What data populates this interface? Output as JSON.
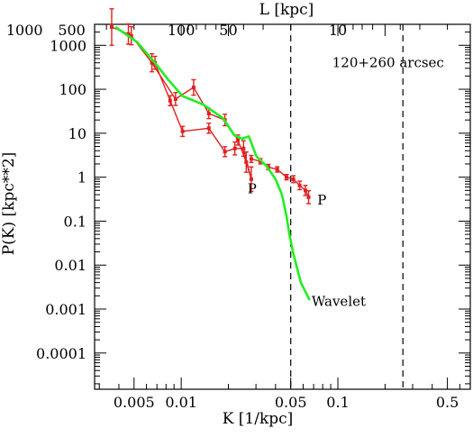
{
  "chart_data": {
    "type": "line",
    "title": "",
    "xlabel": "K [1/kpc]",
    "ylabel": "P(K) [kpc**2]",
    "top_xlabel": "L [kpc]",
    "xscale": "log",
    "yscale": "log",
    "xlim": [
      0.0028,
      0.7
    ],
    "ylim": [
      1.5e-05,
      3000
    ],
    "x_tick_labels": [
      "0.005",
      "0.01",
      "0.05",
      "0.1",
      "0.5"
    ],
    "x_tick_values": [
      0.005,
      0.01,
      0.05,
      0.1,
      0.5
    ],
    "top_tick_labels": [
      "1000",
      "500",
      "100",
      "50",
      "10"
    ],
    "top_tick_values": [
      1000,
      500,
      100,
      50,
      10
    ],
    "y_tick_labels": [
      "1000",
      "100",
      "10",
      "1",
      "0.1",
      "0.01",
      "0.001",
      "0.0001"
    ],
    "y_tick_values": [
      1000,
      100,
      10,
      1,
      0.1,
      0.01,
      0.001,
      0.0001
    ],
    "vlines": [
      0.05,
      0.26
    ],
    "annotations": [
      {
        "text": "120+260 arcsec",
        "x": 0.092,
        "y": 400
      },
      {
        "text": "P",
        "x": 0.0265,
        "y": 0.55
      },
      {
        "text": "P",
        "x": 0.074,
        "y": 0.3
      },
      {
        "text": "Wavelet",
        "x": 0.068,
        "y": 0.0015
      }
    ],
    "series": [
      {
        "color": "#e02020",
        "x": [
          0.0036,
          0.0046,
          0.0048,
          0.0065,
          0.0092,
          0.012,
          0.015,
          0.019,
          0.023,
          0.026,
          0.028,
          0.025,
          0.022,
          0.019,
          0.015,
          0.0102,
          0.0085,
          0.0068
        ],
        "y": [
          2600,
          1800,
          1650,
          400,
          60,
          110,
          28,
          20,
          7,
          2.2,
          0.9,
          4.5,
          4.5,
          3.8,
          13,
          11,
          55,
          400
        ],
        "err": [
          2.6,
          1.7,
          1.6,
          1.6,
          1.4,
          1.5,
          1.3,
          1.35,
          1.3,
          1.7,
          1.9,
          1.5,
          1.4,
          1.3,
          1.3,
          1.3,
          1.3,
          1.4
        ]
      },
      {
        "color": "#e02020",
        "x": [
          0.028,
          0.032,
          0.036,
          0.041,
          0.047,
          0.052,
          0.057,
          0.062,
          0.065
        ],
        "y": [
          2.6,
          2.3,
          1.7,
          1.5,
          1.0,
          0.9,
          0.65,
          0.5,
          0.35
        ],
        "err": [
          1.2,
          1.15,
          1.15,
          1.15,
          1.15,
          1.2,
          1.25,
          1.3,
          1.4
        ]
      },
      {
        "color": "#22ee22",
        "x": [
          0.0038,
          0.0052,
          0.0068,
          0.0082,
          0.0102,
          0.0138,
          0.0185,
          0.0218,
          0.0245,
          0.027,
          0.0302,
          0.035,
          0.04,
          0.044,
          0.047,
          0.049,
          0.052,
          0.058,
          0.066
        ],
        "y": [
          2600,
          1200,
          400,
          170,
          70,
          45,
          22,
          9,
          7.5,
          8.5,
          3.0,
          1.8,
          0.9,
          0.4,
          0.13,
          0.05,
          0.018,
          0.004,
          0.0016
        ]
      }
    ]
  }
}
